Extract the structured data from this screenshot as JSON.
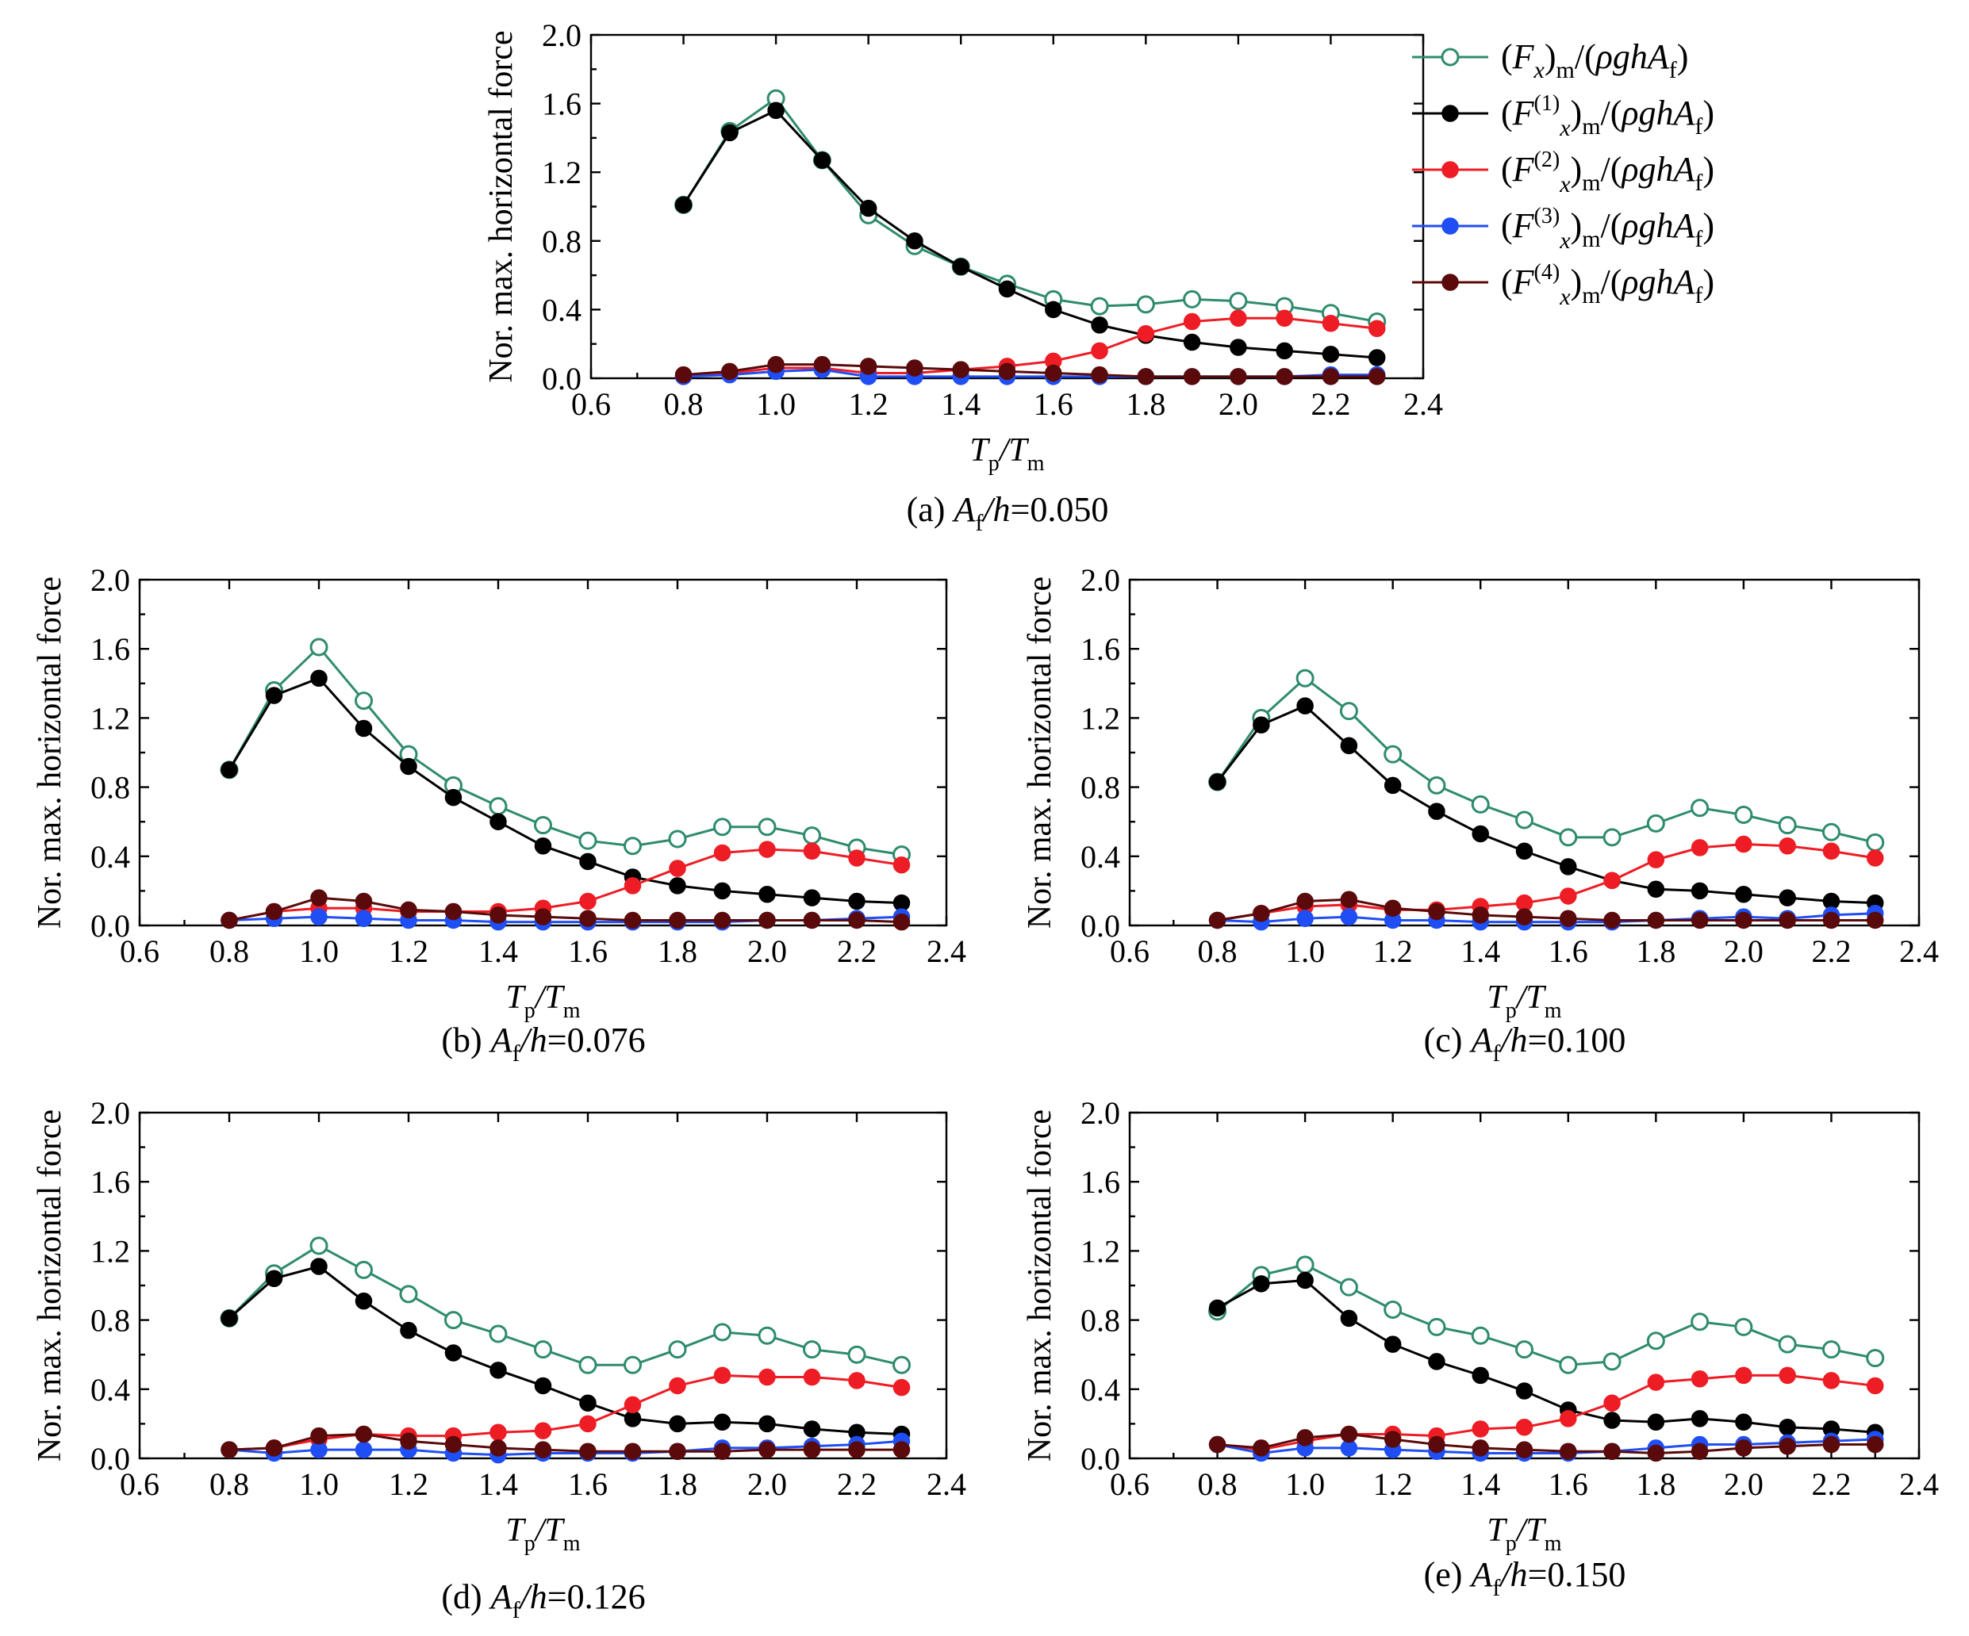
{
  "figure": {
    "legend": {
      "entries": [
        {
          "series_index": 0,
          "label_base": "(F",
          "label_sub": "x",
          "label_sup": "",
          "label_tail": ")",
          "label_tail_sub": "m",
          "label_rest": "/(ρghA",
          "label_rest_sub": "f",
          "label_end": ")"
        },
        {
          "series_index": 1,
          "label_base": "(F",
          "label_sub": "x",
          "label_sup": "(1)",
          "label_tail": ")",
          "label_tail_sub": "m",
          "label_rest": "/(ρghA",
          "label_rest_sub": "f",
          "label_end": ")"
        },
        {
          "series_index": 2,
          "label_base": "(F",
          "label_sub": "x",
          "label_sup": "(2)",
          "label_tail": ")",
          "label_tail_sub": "m",
          "label_rest": "/(ρghA",
          "label_rest_sub": "f",
          "label_end": ")"
        },
        {
          "series_index": 3,
          "label_base": "(F",
          "label_sub": "x",
          "label_sup": "(3)",
          "label_tail": ")",
          "label_tail_sub": "m",
          "label_rest": "/(ρghA",
          "label_rest_sub": "f",
          "label_end": ")"
        },
        {
          "series_index": 4,
          "label_base": "(F",
          "label_sub": "x",
          "label_sup": "(4)",
          "label_tail": ")",
          "label_tail_sub": "m",
          "label_rest": "/(ρghA",
          "label_rest_sub": "f",
          "label_end": ")"
        }
      ]
    },
    "series_styles": [
      {
        "color": "#2e8b6e",
        "marker": "open-circle"
      },
      {
        "color": "#000000",
        "marker": "filled-circle"
      },
      {
        "color": "#ee1c24",
        "marker": "filled-circle"
      },
      {
        "color": "#1f4ef5",
        "marker": "filled-circle"
      },
      {
        "color": "#5a0a0a",
        "marker": "filled-circle"
      }
    ]
  },
  "chart_data": [
    {
      "type": "line",
      "caption_prefix": "(a) ",
      "caption_var": "A",
      "caption_sub": "f",
      "caption_mid": "/h",
      "caption_value": "=0.050",
      "ylabel": "Nor. max. horizontal force",
      "xlabel_main": "T",
      "xlabel_sub1": "p",
      "xlabel_mid": "/T",
      "xlabel_sub2": "m",
      "xlim": [
        0.6,
        2.4
      ],
      "ylim": [
        0.0,
        2.0
      ],
      "xticks": [
        "0.6",
        "0.8",
        "1.0",
        "1.2",
        "1.4",
        "1.6",
        "1.8",
        "2.0",
        "2.2",
        "2.4"
      ],
      "yticks": [
        "0.0",
        "0.4",
        "0.8",
        "1.2",
        "1.6",
        "2.0"
      ],
      "x": [
        0.8,
        0.9,
        1.0,
        1.1,
        1.2,
        1.3,
        1.4,
        1.5,
        1.6,
        1.7,
        1.8,
        1.9,
        2.0,
        2.1,
        2.2,
        2.3
      ],
      "series": [
        {
          "values": [
            1.01,
            1.44,
            1.63,
            1.27,
            0.95,
            0.77,
            0.65,
            0.55,
            0.46,
            0.42,
            0.43,
            0.46,
            0.45,
            0.42,
            0.38,
            0.33
          ]
        },
        {
          "values": [
            1.01,
            1.43,
            1.56,
            1.27,
            0.99,
            0.8,
            0.65,
            0.52,
            0.4,
            0.31,
            0.25,
            0.21,
            0.18,
            0.16,
            0.14,
            0.12
          ]
        },
        {
          "values": [
            0.01,
            0.03,
            0.06,
            0.06,
            0.03,
            0.03,
            0.05,
            0.07,
            0.1,
            0.16,
            0.26,
            0.33,
            0.35,
            0.35,
            0.32,
            0.29
          ]
        },
        {
          "values": [
            0.01,
            0.02,
            0.04,
            0.05,
            0.01,
            0.01,
            0.01,
            0.01,
            0.01,
            0.01,
            0.01,
            0.01,
            0.01,
            0.01,
            0.02,
            0.02
          ]
        },
        {
          "values": [
            0.02,
            0.04,
            0.08,
            0.08,
            0.07,
            0.06,
            0.05,
            0.04,
            0.03,
            0.02,
            0.01,
            0.01,
            0.01,
            0.01,
            0.01,
            0.01
          ]
        }
      ]
    },
    {
      "type": "line",
      "caption_prefix": "(b) ",
      "caption_var": "A",
      "caption_sub": "f",
      "caption_mid": "/h",
      "caption_value": "=0.076",
      "ylabel": "Nor. max. horizontal force",
      "xlabel_main": "T",
      "xlabel_sub1": "p",
      "xlabel_mid": "/T",
      "xlabel_sub2": "m",
      "xlim": [
        0.6,
        2.4
      ],
      "ylim": [
        0.0,
        2.0
      ],
      "xticks": [
        "0.6",
        "0.8",
        "1.0",
        "1.2",
        "1.4",
        "1.6",
        "1.8",
        "2.0",
        "2.2",
        "2.4"
      ],
      "yticks": [
        "0.0",
        "0.4",
        "0.8",
        "1.2",
        "1.6",
        "2.0"
      ],
      "x": [
        0.8,
        0.9,
        1.0,
        1.1,
        1.2,
        1.3,
        1.4,
        1.5,
        1.6,
        1.7,
        1.8,
        1.9,
        2.0,
        2.1,
        2.2,
        2.3
      ],
      "series": [
        {
          "values": [
            0.9,
            1.36,
            1.61,
            1.3,
            0.99,
            0.81,
            0.69,
            0.58,
            0.49,
            0.46,
            0.5,
            0.57,
            0.57,
            0.52,
            0.45,
            0.41
          ]
        },
        {
          "values": [
            0.9,
            1.33,
            1.43,
            1.14,
            0.92,
            0.74,
            0.6,
            0.46,
            0.37,
            0.28,
            0.23,
            0.2,
            0.18,
            0.16,
            0.14,
            0.13
          ]
        },
        {
          "values": [
            0.03,
            0.08,
            0.1,
            0.1,
            0.08,
            0.08,
            0.08,
            0.1,
            0.14,
            0.23,
            0.33,
            0.42,
            0.44,
            0.43,
            0.39,
            0.35
          ]
        },
        {
          "values": [
            0.03,
            0.04,
            0.05,
            0.04,
            0.03,
            0.03,
            0.02,
            0.02,
            0.02,
            0.02,
            0.02,
            0.02,
            0.03,
            0.03,
            0.04,
            0.05
          ]
        },
        {
          "values": [
            0.03,
            0.08,
            0.16,
            0.14,
            0.09,
            0.08,
            0.06,
            0.05,
            0.04,
            0.03,
            0.03,
            0.03,
            0.03,
            0.03,
            0.03,
            0.02
          ]
        }
      ]
    },
    {
      "type": "line",
      "caption_prefix": "(c) ",
      "caption_var": "A",
      "caption_sub": "f",
      "caption_mid": "/h",
      "caption_value": "=0.100",
      "ylabel": "Nor. max. horizontal force",
      "xlabel_main": "T",
      "xlabel_sub1": "p",
      "xlabel_mid": "/T",
      "xlabel_sub2": "m",
      "xlim": [
        0.6,
        2.4
      ],
      "ylim": [
        0.0,
        2.0
      ],
      "xticks": [
        "0.6",
        "0.8",
        "1.0",
        "1.2",
        "1.4",
        "1.6",
        "1.8",
        "2.0",
        "2.2",
        "2.4"
      ],
      "yticks": [
        "0.0",
        "0.4",
        "0.8",
        "1.2",
        "1.6",
        "2.0"
      ],
      "x": [
        0.8,
        0.9,
        1.0,
        1.1,
        1.2,
        1.3,
        1.4,
        1.5,
        1.6,
        1.7,
        1.8,
        1.9,
        2.0,
        2.1,
        2.2,
        2.3
      ],
      "series": [
        {
          "values": [
            0.83,
            1.2,
            1.43,
            1.24,
            0.99,
            0.81,
            0.7,
            0.61,
            0.51,
            0.51,
            0.59,
            0.68,
            0.64,
            0.58,
            0.54,
            0.48
          ]
        },
        {
          "values": [
            0.83,
            1.16,
            1.27,
            1.04,
            0.81,
            0.66,
            0.53,
            0.43,
            0.34,
            0.26,
            0.21,
            0.2,
            0.18,
            0.16,
            0.14,
            0.13
          ]
        },
        {
          "values": [
            0.03,
            0.07,
            0.11,
            0.12,
            0.09,
            0.09,
            0.11,
            0.13,
            0.17,
            0.26,
            0.38,
            0.45,
            0.47,
            0.46,
            0.43,
            0.39
          ]
        },
        {
          "values": [
            0.03,
            0.02,
            0.04,
            0.05,
            0.03,
            0.03,
            0.02,
            0.02,
            0.02,
            0.02,
            0.03,
            0.04,
            0.05,
            0.04,
            0.06,
            0.07
          ]
        },
        {
          "values": [
            0.03,
            0.07,
            0.14,
            0.15,
            0.1,
            0.08,
            0.06,
            0.05,
            0.04,
            0.03,
            0.03,
            0.03,
            0.03,
            0.03,
            0.03,
            0.03
          ]
        }
      ]
    },
    {
      "type": "line",
      "caption_prefix": "(d) ",
      "caption_var": "A",
      "caption_sub": "f",
      "caption_mid": "/h",
      "caption_value": "=0.126",
      "ylabel": "Nor. max. horizontal force",
      "xlabel_main": "T",
      "xlabel_sub1": "p",
      "xlabel_mid": "/T",
      "xlabel_sub2": "m",
      "xlim": [
        0.6,
        2.4
      ],
      "ylim": [
        0.0,
        2.0
      ],
      "xticks": [
        "0.6",
        "0.8",
        "1.0",
        "1.2",
        "1.4",
        "1.6",
        "1.8",
        "2.0",
        "2.2",
        "2.4"
      ],
      "yticks": [
        "0.0",
        "0.4",
        "0.8",
        "1.2",
        "1.6",
        "2.0"
      ],
      "x": [
        0.8,
        0.9,
        1.0,
        1.1,
        1.2,
        1.3,
        1.4,
        1.5,
        1.6,
        1.7,
        1.8,
        1.9,
        2.0,
        2.1,
        2.2,
        2.3
      ],
      "series": [
        {
          "values": [
            0.81,
            1.07,
            1.23,
            1.09,
            0.95,
            0.8,
            0.72,
            0.63,
            0.54,
            0.54,
            0.63,
            0.73,
            0.71,
            0.63,
            0.6,
            0.54
          ]
        },
        {
          "values": [
            0.81,
            1.04,
            1.11,
            0.91,
            0.74,
            0.61,
            0.51,
            0.42,
            0.32,
            0.23,
            0.2,
            0.21,
            0.2,
            0.17,
            0.15,
            0.14
          ]
        },
        {
          "values": [
            0.05,
            0.06,
            0.11,
            0.14,
            0.13,
            0.13,
            0.15,
            0.16,
            0.2,
            0.31,
            0.42,
            0.48,
            0.47,
            0.47,
            0.45,
            0.41
          ]
        },
        {
          "values": [
            0.05,
            0.03,
            0.05,
            0.05,
            0.05,
            0.03,
            0.02,
            0.03,
            0.03,
            0.03,
            0.04,
            0.06,
            0.06,
            0.07,
            0.08,
            0.1
          ]
        },
        {
          "values": [
            0.05,
            0.06,
            0.13,
            0.14,
            0.1,
            0.08,
            0.06,
            0.05,
            0.04,
            0.04,
            0.04,
            0.04,
            0.05,
            0.05,
            0.05,
            0.05
          ]
        }
      ]
    },
    {
      "type": "line",
      "caption_prefix": "(e) ",
      "caption_var": "A",
      "caption_sub": "f",
      "caption_mid": "/h",
      "caption_value": "=0.150",
      "ylabel": "Nor. max. horizontal force",
      "xlabel_main": "T",
      "xlabel_sub1": "p",
      "xlabel_mid": "/T",
      "xlabel_sub2": "m",
      "xlim": [
        0.6,
        2.4
      ],
      "ylim": [
        0.0,
        2.0
      ],
      "xticks": [
        "0.6",
        "0.8",
        "1.0",
        "1.2",
        "1.4",
        "1.6",
        "1.8",
        "2.0",
        "2.2",
        "2.4"
      ],
      "yticks": [
        "0.0",
        "0.4",
        "0.8",
        "1.2",
        "1.6",
        "2.0"
      ],
      "x": [
        0.8,
        0.9,
        1.0,
        1.1,
        1.2,
        1.3,
        1.4,
        1.5,
        1.6,
        1.7,
        1.8,
        1.9,
        2.0,
        2.1,
        2.2,
        2.3
      ],
      "series": [
        {
          "values": [
            0.85,
            1.06,
            1.12,
            0.99,
            0.86,
            0.76,
            0.71,
            0.63,
            0.54,
            0.56,
            0.68,
            0.79,
            0.76,
            0.66,
            0.63,
            0.58
          ]
        },
        {
          "values": [
            0.87,
            1.01,
            1.03,
            0.81,
            0.66,
            0.56,
            0.48,
            0.39,
            0.28,
            0.22,
            0.21,
            0.23,
            0.21,
            0.18,
            0.17,
            0.15
          ]
        },
        {
          "values": [
            0.08,
            0.05,
            0.1,
            0.14,
            0.14,
            0.13,
            0.17,
            0.18,
            0.23,
            0.32,
            0.44,
            0.46,
            0.48,
            0.48,
            0.45,
            0.42
          ]
        },
        {
          "values": [
            0.08,
            0.03,
            0.06,
            0.06,
            0.05,
            0.04,
            0.03,
            0.03,
            0.03,
            0.04,
            0.06,
            0.08,
            0.08,
            0.09,
            0.1,
            0.11
          ]
        },
        {
          "values": [
            0.08,
            0.06,
            0.12,
            0.14,
            0.11,
            0.08,
            0.06,
            0.05,
            0.04,
            0.04,
            0.03,
            0.04,
            0.06,
            0.07,
            0.08,
            0.08
          ]
        }
      ]
    }
  ]
}
